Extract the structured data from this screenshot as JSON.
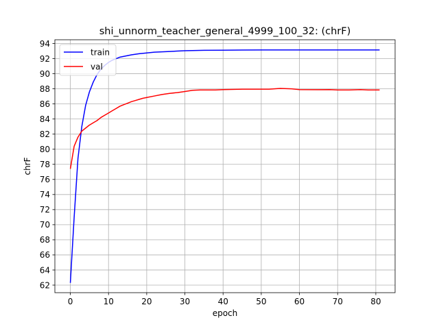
{
  "chart_data": {
    "type": "line",
    "title": "shi_unnorm_teacher_general_4999_100_32: (chrF)",
    "xlabel": "epoch",
    "ylabel": "chrF",
    "xlim": [
      -4.05,
      85.05
    ],
    "ylim": [
      61.0,
      94.5
    ],
    "xticks": [
      0,
      10,
      20,
      30,
      40,
      50,
      60,
      70,
      80
    ],
    "yticks": [
      62,
      64,
      66,
      68,
      70,
      72,
      74,
      76,
      78,
      80,
      82,
      84,
      86,
      88,
      90,
      92,
      94
    ],
    "grid": true,
    "legend_position": "top-left",
    "series": [
      {
        "name": "train",
        "color": "#0000ff",
        "x": [
          0,
          1,
          2,
          3,
          4,
          5,
          6,
          7,
          8,
          9,
          10,
          11,
          12,
          13,
          14,
          15,
          16,
          18,
          20,
          22,
          24,
          26,
          28,
          30,
          35,
          40,
          45,
          50,
          55,
          60,
          65,
          70,
          75,
          81
        ],
        "y": [
          62.3,
          71.0,
          78.8,
          83.0,
          85.8,
          87.6,
          88.9,
          89.9,
          90.6,
          91.1,
          91.5,
          91.8,
          92.0,
          92.2,
          92.3,
          92.4,
          92.5,
          92.65,
          92.75,
          92.85,
          92.9,
          92.95,
          93.0,
          93.05,
          93.1,
          93.12,
          93.14,
          93.15,
          93.15,
          93.15,
          93.15,
          93.15,
          93.15,
          93.15
        ]
      },
      {
        "name": "val",
        "color": "#ff0000",
        "x": [
          0,
          1,
          2,
          3,
          4,
          5,
          6,
          7,
          8,
          9,
          10,
          11,
          12,
          13,
          14,
          15,
          16,
          17,
          18,
          19,
          20,
          22,
          24,
          26,
          28,
          30,
          32,
          34,
          36,
          38,
          40,
          45,
          50,
          52,
          55,
          58,
          60,
          65,
          68,
          70,
          73,
          76,
          78,
          81
        ],
        "y": [
          77.4,
          80.4,
          81.6,
          82.4,
          82.8,
          83.2,
          83.5,
          83.8,
          84.2,
          84.5,
          84.8,
          85.1,
          85.4,
          85.7,
          85.9,
          86.1,
          86.3,
          86.45,
          86.6,
          86.75,
          86.85,
          87.05,
          87.25,
          87.4,
          87.5,
          87.65,
          87.8,
          87.85,
          87.85,
          87.85,
          87.9,
          87.95,
          87.95,
          87.95,
          88.05,
          88.0,
          87.9,
          87.88,
          87.9,
          87.85,
          87.85,
          87.9,
          87.85,
          87.85
        ]
      }
    ]
  }
}
